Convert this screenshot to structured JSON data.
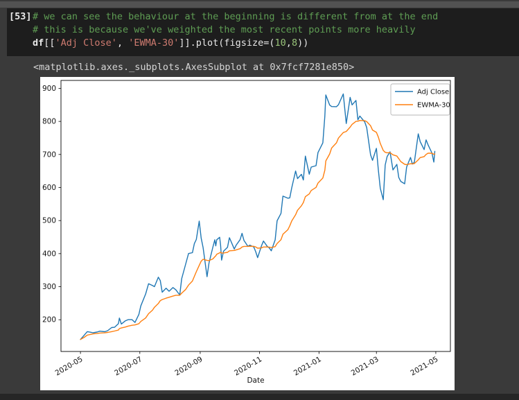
{
  "colors": {
    "page_bg": "#3a3a3a",
    "cell_bg": "#1d1d1d",
    "code_fg": "#e8e8e8",
    "comment": "#5f9e54",
    "string": "#ce7b70",
    "number": "#98c379",
    "series_blue": "#1f77b4",
    "series_orange": "#ff7f0e"
  },
  "notebook": {
    "prompt": "[53]",
    "code": {
      "comment1": "# we can see the behaviour at the beginning is different from at the end",
      "comment2": "# this is because we've weighted the most recent points more heavily",
      "line3": [
        {
          "text": "df"
        },
        {
          "text": "[["
        },
        {
          "text": "'Adj Close'"
        },
        {
          "text": ", "
        },
        {
          "text": "'EWMA-30'"
        },
        {
          "text": "]].plot(figsize=("
        },
        {
          "text": "10"
        },
        {
          "text": ","
        },
        {
          "text": "8"
        },
        {
          "text": "))"
        }
      ]
    },
    "output_repr": "<matplotlib.axes._subplots.AxesSubplot at 0x7fcf7281e850>"
  },
  "chart_data": {
    "type": "line",
    "title": "",
    "xlabel": "Date",
    "ylabel": "",
    "grid": false,
    "legend_position": "upper right",
    "xlim": [
      "2020-04-11",
      "2021-05-16"
    ],
    "ylim": [
      104,
      924
    ],
    "yticks": [
      200,
      300,
      400,
      500,
      600,
      700,
      800,
      900
    ],
    "xticks": [
      {
        "date": "2020-05-01",
        "label": "2020-05"
      },
      {
        "date": "2020-07-01",
        "label": "2020-07"
      },
      {
        "date": "2020-09-01",
        "label": "2020-09"
      },
      {
        "date": "2020-11-01",
        "label": "2020-11"
      },
      {
        "date": "2021-01-01",
        "label": "2021-01"
      },
      {
        "date": "2021-03-01",
        "label": "2021-03"
      },
      {
        "date": "2021-05-01",
        "label": "2021-05"
      }
    ],
    "x": [
      "2020-05-01",
      "2020-05-05",
      "2020-05-08",
      "2020-05-12",
      "2020-05-14",
      "2020-05-18",
      "2020-05-21",
      "2020-05-26",
      "2020-05-29",
      "2020-06-02",
      "2020-06-05",
      "2020-06-09",
      "2020-06-10",
      "2020-06-12",
      "2020-06-16",
      "2020-06-19",
      "2020-06-23",
      "2020-06-26",
      "2020-06-30",
      "2020-07-02",
      "2020-07-07",
      "2020-07-10",
      "2020-07-14",
      "2020-07-16",
      "2020-07-20",
      "2020-07-22",
      "2020-07-24",
      "2020-07-28",
      "2020-07-31",
      "2020-08-04",
      "2020-08-07",
      "2020-08-11",
      "2020-08-13",
      "2020-08-17",
      "2020-08-20",
      "2020-08-24",
      "2020-08-26",
      "2020-08-28",
      "2020-08-31",
      "2020-09-02",
      "2020-09-04",
      "2020-09-08",
      "2020-09-10",
      "2020-09-14",
      "2020-09-16",
      "2020-09-17",
      "2020-09-18",
      "2020-09-21",
      "2020-09-22",
      "2020-09-23",
      "2020-09-25",
      "2020-09-29",
      "2020-10-01",
      "2020-10-06",
      "2020-10-08",
      "2020-10-12",
      "2020-10-14",
      "2020-10-16",
      "2020-10-20",
      "2020-10-22",
      "2020-10-26",
      "2020-10-28",
      "2020-10-30",
      "2020-11-03",
      "2020-11-05",
      "2020-11-09",
      "2020-11-11",
      "2020-11-13",
      "2020-11-17",
      "2020-11-19",
      "2020-11-23",
      "2020-11-25",
      "2020-11-30",
      "2020-12-02",
      "2020-12-04",
      "2020-12-08",
      "2020-12-10",
      "2020-12-14",
      "2020-12-16",
      "2020-12-18",
      "2020-12-22",
      "2020-12-24",
      "2020-12-29",
      "2020-12-31",
      "2021-01-05",
      "2021-01-07",
      "2021-01-08",
      "2021-01-12",
      "2021-01-14",
      "2021-01-19",
      "2021-01-21",
      "2021-01-26",
      "2021-01-29",
      "2021-02-02",
      "2021-02-04",
      "2021-02-08",
      "2021-02-10",
      "2021-02-12",
      "2021-02-17",
      "2021-02-19",
      "2021-02-23",
      "2021-02-25",
      "2021-03-01",
      "2021-03-03",
      "2021-03-05",
      "2021-03-08",
      "2021-03-10",
      "2021-03-12",
      "2021-03-15",
      "2021-03-18",
      "2021-03-22",
      "2021-03-24",
      "2021-03-26",
      "2021-03-30",
      "2021-04-01",
      "2021-04-05",
      "2021-04-07",
      "2021-04-09",
      "2021-04-13",
      "2021-04-15",
      "2021-04-19",
      "2021-04-21",
      "2021-04-23",
      "2021-04-27",
      "2021-04-29",
      "2021-04-30"
    ],
    "series": [
      {
        "name": "Adj Close",
        "color": "#1f77b4",
        "values": [
          140.26,
          153.64,
          163.88,
          161.88,
          160.67,
          162.73,
          165.52,
          163.77,
          167.0,
          176.31,
          177.13,
          188.13,
          205.01,
          187.06,
          196.43,
          200.18,
          200.36,
          191.95,
          215.96,
          241.73,
          277.97,
          308.93,
          303.36,
          300.13,
          328.6,
          318.47,
          283.4,
          295.3,
          286.15,
          297.4,
          290.54,
          274.88,
          324.2,
          367.13,
          400.37,
          402.84,
          430.63,
          442.68,
          498.32,
          447.37,
          418.32,
          330.21,
          371.34,
          419.62,
          441.76,
          423.43,
          442.15,
          449.39,
          424.23,
          380.36,
          407.34,
          419.07,
          448.16,
          413.98,
          425.92,
          442.3,
          461.3,
          439.67,
          421.94,
          425.79,
          420.28,
          406.02,
          388.04,
          423.9,
          438.09,
          421.26,
          417.13,
          408.5,
          441.61,
          499.27,
          521.85,
          574.0,
          567.6,
          568.82,
          599.04,
          649.88,
          627.07,
          639.83,
          622.77,
          695.0,
          640.34,
          661.77,
          665.99,
          705.67,
          735.11,
          816.04,
          880.02,
          849.44,
          845.0,
          844.55,
          850.45,
          883.09,
          793.53,
          872.79,
          849.99,
          863.42,
          804.82,
          816.12,
          798.15,
          781.3,
          698.84,
          682.22,
          718.43,
          653.2,
          597.95,
          563.0,
          668.06,
          693.73,
          707.94,
          653.16,
          670.0,
          630.27,
          618.71,
          611.29,
          661.75,
          691.05,
          670.97,
          677.02,
          762.32,
          738.85,
          714.63,
          744.12,
          729.4,
          704.74,
          677.0,
          709.44
        ]
      },
      {
        "name": "EWMA-30",
        "color": "#ff7f0e",
        "values": [
          140.3,
          147.0,
          153.5,
          156.0,
          157.2,
          158.4,
          159.8,
          160.5,
          161.6,
          163.9,
          165.8,
          168.9,
          173.3,
          175.1,
          177.9,
          180.7,
          183.2,
          184.3,
          188.2,
          194.9,
          205.3,
          218.2,
          228.9,
          237.8,
          249.2,
          257.8,
          261.0,
          265.3,
          267.9,
          271.6,
          274.0,
          274.1,
          280.4,
          291.2,
          304.9,
          317.1,
          331.3,
          345.2,
          364.4,
          377.0,
          383.0,
          379.5,
          379.0,
          384.0,
          390.5,
          393.5,
          398.0,
          402.5,
          404.5,
          401.5,
          402.0,
          404.0,
          408.5,
          409.5,
          411.5,
          415.0,
          420.0,
          422.0,
          422.0,
          422.4,
          422.2,
          420.3,
          416.5,
          417.4,
          420.0,
          420.1,
          419.7,
          418.3,
          421.1,
          430.8,
          442.1,
          458.6,
          472.3,
          484.3,
          498.7,
          517.6,
          531.3,
          544.9,
          554.6,
          572.2,
          580.7,
          590.9,
          600.3,
          613.5,
          628.7,
          652.1,
          680.6,
          701.7,
          719.6,
          735.2,
          749.6,
          766.3,
          769.7,
          782.6,
          791.1,
          800.1,
          800.7,
          802.7,
          802.1,
          799.5,
          786.9,
          773.9,
          766.9,
          752.7,
          733.4,
          712.1,
          706.6,
          705.0,
          705.4,
          698.9,
          695.3,
          687.2,
          678.6,
          670.2,
          669.2,
          671.9,
          671.8,
          672.5,
          683.7,
          690.6,
          693.6,
          700.0,
          703.7,
          703.8,
          700.5,
          701.6
        ]
      }
    ]
  }
}
